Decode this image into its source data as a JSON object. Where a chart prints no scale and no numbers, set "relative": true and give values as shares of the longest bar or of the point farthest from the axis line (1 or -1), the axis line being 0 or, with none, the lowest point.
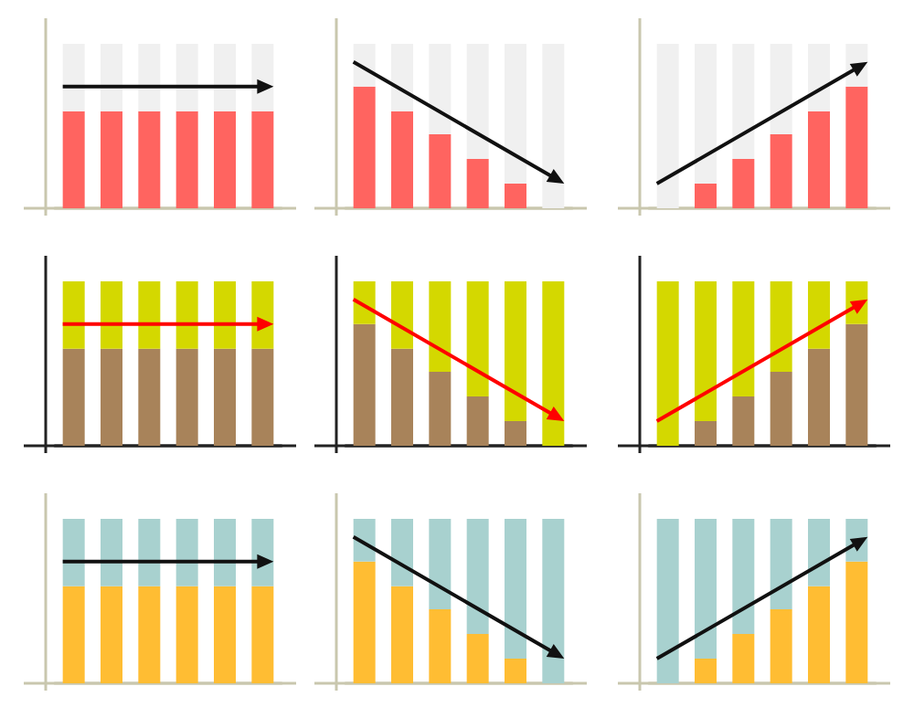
{
  "chart_data": [
    {
      "type": "bar",
      "relative": true,
      "stacked": true,
      "categories": [
        null,
        null,
        null,
        null,
        null,
        null
      ],
      "series": [
        {
          "color": "#ff6460",
          "values": [
            0.59,
            0.59,
            0.59,
            0.59,
            0.59,
            0.59
          ]
        },
        {
          "color": "#f0f0f0",
          "values": [
            0.41,
            0.41,
            0.41,
            0.41,
            0.41,
            0.41
          ]
        }
      ]
    },
    {
      "type": "bar",
      "relative": true,
      "stacked": true,
      "categories": [
        null,
        null,
        null,
        null,
        null,
        null
      ],
      "series": [
        {
          "color": "#ff6460",
          "values": [
            0.74,
            0.59,
            0.45,
            0.3,
            0.15,
            0
          ]
        },
        {
          "color": "#f0f0f0",
          "values": [
            0.26,
            0.41,
            0.55,
            0.7,
            0.85,
            1
          ]
        }
      ]
    },
    {
      "type": "bar",
      "relative": true,
      "stacked": true,
      "categories": [
        null,
        null,
        null,
        null,
        null,
        null
      ],
      "series": [
        {
          "color": "#ff6460",
          "values": [
            0,
            0.15,
            0.3,
            0.45,
            0.59,
            0.74
          ]
        },
        {
          "color": "#f0f0f0",
          "values": [
            1,
            0.85,
            0.7,
            0.55,
            0.41,
            0.26
          ]
        }
      ]
    },
    {
      "type": "bar",
      "relative": true,
      "stacked": true,
      "categories": [
        null,
        null,
        null,
        null,
        null,
        null
      ],
      "series": [
        {
          "color": "#a8835a",
          "values": [
            0.59,
            0.59,
            0.59,
            0.59,
            0.59,
            0.59
          ]
        },
        {
          "color": "#d4d800",
          "values": [
            0.41,
            0.41,
            0.41,
            0.41,
            0.41,
            0.41
          ]
        }
      ]
    },
    {
      "type": "bar",
      "relative": true,
      "stacked": true,
      "categories": [
        null,
        null,
        null,
        null,
        null,
        null
      ],
      "series": [
        {
          "color": "#a8835a",
          "values": [
            0.74,
            0.59,
            0.45,
            0.3,
            0.15,
            0
          ]
        },
        {
          "color": "#d4d800",
          "values": [
            0.26,
            0.41,
            0.55,
            0.7,
            0.85,
            1
          ]
        }
      ]
    },
    {
      "type": "bar",
      "relative": true,
      "stacked": true,
      "categories": [
        null,
        null,
        null,
        null,
        null,
        null
      ],
      "series": [
        {
          "color": "#a8835a",
          "values": [
            0,
            0.15,
            0.3,
            0.45,
            0.59,
            0.74
          ]
        },
        {
          "color": "#d4d800",
          "values": [
            1,
            0.85,
            0.7,
            0.55,
            0.41,
            0.26
          ]
        }
      ]
    },
    {
      "type": "bar",
      "relative": true,
      "stacked": true,
      "categories": [
        null,
        null,
        null,
        null,
        null,
        null
      ],
      "series": [
        {
          "color": "#ffbd33",
          "values": [
            0.59,
            0.59,
            0.59,
            0.59,
            0.59,
            0.59
          ]
        },
        {
          "color": "#a8d1cf",
          "values": [
            0.41,
            0.41,
            0.41,
            0.41,
            0.41,
            0.41
          ]
        }
      ]
    },
    {
      "type": "bar",
      "relative": true,
      "stacked": true,
      "categories": [
        null,
        null,
        null,
        null,
        null,
        null
      ],
      "series": [
        {
          "color": "#ffbd33",
          "values": [
            0.74,
            0.59,
            0.45,
            0.3,
            0.15,
            0
          ]
        },
        {
          "color": "#a8d1cf",
          "values": [
            0.26,
            0.41,
            0.55,
            0.7,
            0.85,
            1
          ]
        }
      ]
    },
    {
      "type": "bar",
      "relative": true,
      "stacked": true,
      "categories": [
        null,
        null,
        null,
        null,
        null,
        null
      ],
      "series": [
        {
          "color": "#ffbd33",
          "values": [
            0,
            0.15,
            0.3,
            0.45,
            0.59,
            0.74
          ]
        },
        {
          "color": "#a8d1cf",
          "values": [
            1,
            0.85,
            0.7,
            0.55,
            0.41,
            0.26
          ]
        }
      ]
    }
  ]
}
